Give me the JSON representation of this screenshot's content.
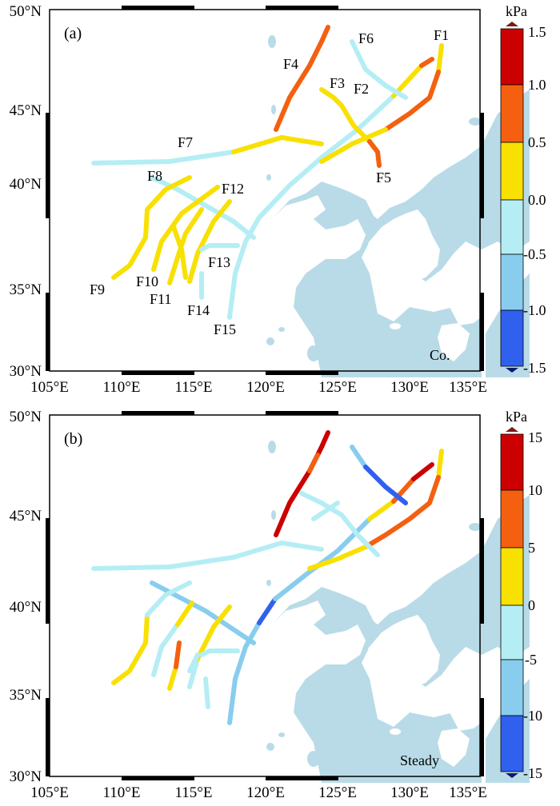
{
  "panels": [
    {
      "id": "a",
      "label": "(a)",
      "corner_text": "Co.",
      "unit": "kPa",
      "colorbar_ticks": [
        "1.5",
        "1.0",
        "0.5",
        "0.0",
        "-0.5",
        "-1.0",
        "-1.5"
      ]
    },
    {
      "id": "b",
      "label": "(b)",
      "corner_text": "Steady",
      "unit": "kPa",
      "colorbar_ticks": [
        "15",
        "10",
        "5",
        "0",
        "-5",
        "-10",
        "-15"
      ]
    }
  ],
  "axes": {
    "lat_ticks": [
      "50°N",
      "45°N",
      "40°N",
      "35°N",
      "30°N"
    ],
    "lon_ticks": [
      "105°E",
      "110°E",
      "115°E",
      "120°E",
      "125°E",
      "130°E",
      "135°E"
    ]
  },
  "fault_labels": [
    "F1",
    "F2",
    "F3",
    "F4",
    "F5",
    "F6",
    "F7",
    "F8",
    "F9",
    "F10",
    "F11",
    "F12",
    "F13",
    "F14",
    "F15"
  ],
  "colors": {
    "colorbar": [
      "#cc0000",
      "#f46010",
      "#f8e000",
      "#b4eef4",
      "#88cdee",
      "#3060ee"
    ],
    "sea": "#b9dbe8",
    "frame": "#000000"
  }
}
